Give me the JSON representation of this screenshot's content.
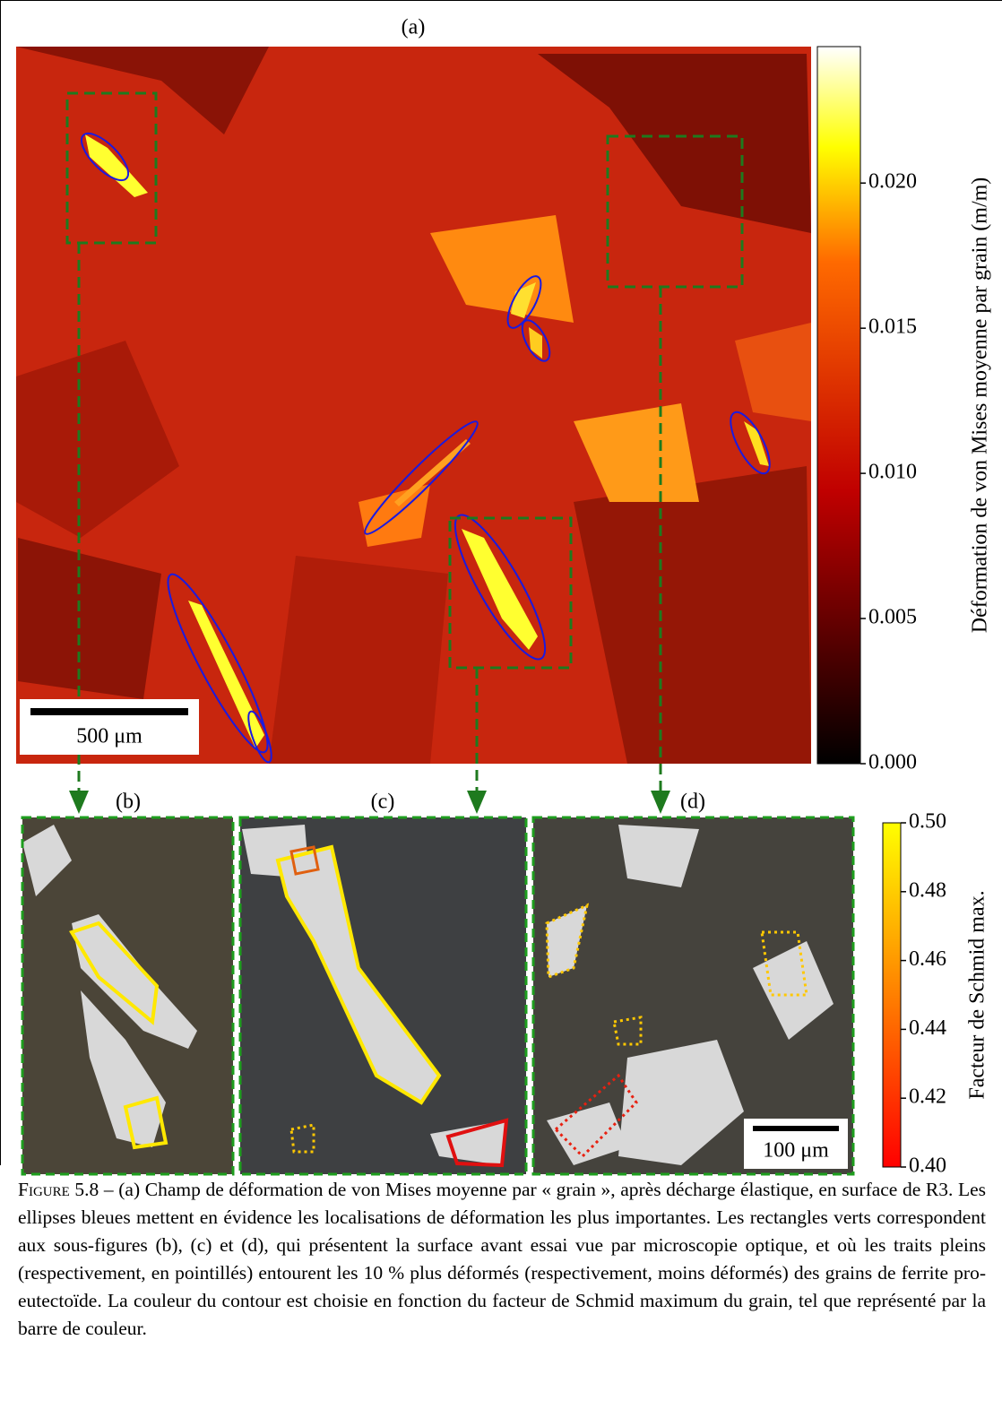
{
  "figure": {
    "panel_labels": [
      "(a)",
      "(b)",
      "(c)",
      "(d)"
    ],
    "strain_colorbar": {
      "label": "Déformation de von Mises moyenne par grain (m/m)",
      "lim": [
        0,
        0.0247
      ],
      "ticks": [
        {
          "value": 0,
          "label": "0.000"
        },
        0.005,
        {
          "value": 0.01,
          "label": "0.010"
        },
        0.015,
        {
          "value": 0.02,
          "label": "0.020"
        }
      ]
    },
    "schmid_colorbar": {
      "label": "Facteur de Schmid max.",
      "lim": [
        0.4,
        0.5
      ],
      "ticks": [
        {
          "value": 0.4,
          "label": "0.40"
        },
        0.42,
        0.44,
        0.46,
        0.48,
        {
          "value": 0.5,
          "label": "0.50"
        }
      ]
    },
    "scale_bars": [
      "500 μm",
      "100 μm"
    ]
  },
  "caption": {
    "lead": "Figure 5.8 –",
    "text": "(a) Champ de déformation de von Mises moyenne par « grain », après décharge élastique, en surface de R3. Les ellipses bleues mettent en évidence les localisations de déformation les plus importantes. Les rectangles verts correspondent aux sous-figures (b), (c) et (d), qui présentent la surface avant essai vue par microscopie optique, et où les traits pleins (respectivement, en pointillés) entourent les 10 % plus déformés (respectivement, moins déformés) des grains de ferrite pro-eutectoïde. La couleur du contour est choisie en fonction du facteur de Schmid maximum du grain, tel que représenté par la barre de couleur."
  }
}
